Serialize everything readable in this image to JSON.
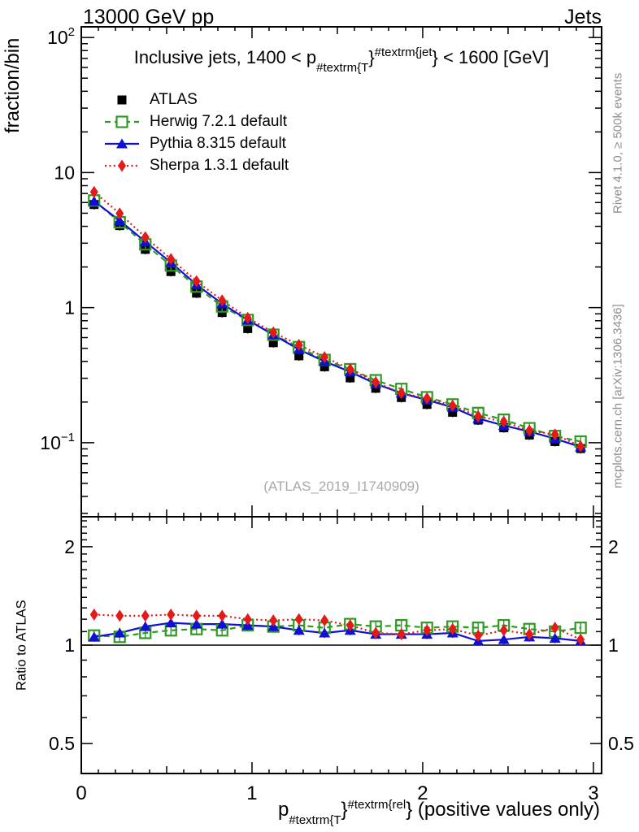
{
  "header": {
    "left_label": "13000 GeV pp",
    "right_label": "Jets"
  },
  "side_notes": {
    "top": "Rivet 4.1.0, ≥ 500k events",
    "bottom": "mcplots.cern.ch [arXiv:1306.3436]"
  },
  "watermark": "(ATLAS_2019_I1740909)",
  "main_title": {
    "pre": "Inclusive jets, 1400 < p",
    "sub": "#textrm{T",
    "brace1": "}",
    "sup": "#textrm{jet",
    "brace2": "}",
    "post": " < 1600 [GeV]"
  },
  "x_title": {
    "pre": "p",
    "sub": "#textrm{T",
    "brace1": "}",
    "sup": "#textrm{rel",
    "brace2": "}",
    "post": " (positive values only)"
  },
  "axis_labels": {
    "main_y": "fraction/bin",
    "ratio_y": "Ratio to ATLAS"
  },
  "chart_data": {
    "type": "line",
    "title": "Inclusive jets, 1400 < pT^jet < 1600 [GeV]",
    "xlabel": "pT^rel (positive values only)",
    "ylabel": "fraction/bin",
    "ratio_ylabel": "Ratio to ATLAS",
    "yscale": "log",
    "xlim": [
      0,
      3.048
    ],
    "main_ylim": [
      0.0283,
      120
    ],
    "ratio_ylim": [
      0.405,
      2.47
    ],
    "xticks": [
      0,
      1,
      2,
      3
    ],
    "x_minor_step": 0.1,
    "main_yticks": [
      {
        "v": 100,
        "base": "10",
        "exp": "2"
      },
      {
        "v": 10,
        "base": "10",
        "exp": ""
      },
      {
        "v": 1,
        "base": "1",
        "exp": ""
      },
      {
        "v": 0.1,
        "base": "10",
        "exp": "−1"
      }
    ],
    "ratio_yticks": [
      {
        "v": 2,
        "label": "2"
      },
      {
        "v": 1,
        "label": "1"
      },
      {
        "v": 0.5,
        "label": "0.5"
      }
    ],
    "ratio_baseline": 1,
    "x": [
      0.075,
      0.225,
      0.375,
      0.525,
      0.675,
      0.825,
      0.975,
      1.125,
      1.275,
      1.425,
      1.575,
      1.725,
      1.875,
      2.025,
      2.175,
      2.325,
      2.475,
      2.625,
      2.775,
      2.925
    ],
    "series": [
      {
        "key": "atlas",
        "name": "ATLAS",
        "color": "#000000",
        "marker": "square-filled",
        "line": "none",
        "values": [
          5.8,
          4.05,
          2.7,
          1.85,
          1.28,
          0.92,
          0.7,
          0.55,
          0.44,
          0.365,
          0.302,
          0.253,
          0.216,
          0.192,
          0.168,
          0.147,
          0.129,
          0.114,
          0.102,
          0.0905
        ]
      },
      {
        "key": "herwig",
        "name": "Herwig 7.2.1 default",
        "color": "#2d9b23",
        "marker": "square-open",
        "line": "dashed",
        "values": [
          6.21,
          4.29,
          2.94,
          2.05,
          1.43,
          1.02,
          0.81,
          0.63,
          0.51,
          0.41,
          0.35,
          0.29,
          0.25,
          0.217,
          0.192,
          0.166,
          0.148,
          0.128,
          0.112,
          0.102
        ],
        "ratio": [
          1.07,
          1.06,
          1.09,
          1.11,
          1.12,
          1.11,
          1.15,
          1.14,
          1.15,
          1.13,
          1.16,
          1.14,
          1.15,
          1.13,
          1.14,
          1.13,
          1.15,
          1.12,
          1.1,
          1.13
        ]
      },
      {
        "key": "pythia",
        "name": "Pythia 8.315 default",
        "color": "#0f0fd6",
        "marker": "triangle-filled",
        "line": "solid",
        "values": [
          6.15,
          4.41,
          3.08,
          2.16,
          1.48,
          1.07,
          0.81,
          0.63,
          0.49,
          0.4,
          0.335,
          0.273,
          0.233,
          0.207,
          0.183,
          0.151,
          0.134,
          0.121,
          0.107,
          0.093
        ],
        "ratio": [
          1.06,
          1.09,
          1.14,
          1.17,
          1.16,
          1.16,
          1.15,
          1.14,
          1.11,
          1.09,
          1.11,
          1.08,
          1.08,
          1.08,
          1.09,
          1.03,
          1.04,
          1.06,
          1.05,
          1.03
        ]
      },
      {
        "key": "sherpa",
        "name": "Sherpa 1.3.1 default",
        "color": "#e61919",
        "marker": "diamond-filled",
        "line": "dotted",
        "values": [
          7.19,
          4.98,
          3.32,
          2.29,
          1.57,
          1.13,
          0.84,
          0.655,
          0.53,
          0.43,
          0.35,
          0.28,
          0.233,
          0.213,
          0.188,
          0.157,
          0.143,
          0.123,
          0.115,
          0.094
        ],
        "ratio": [
          1.24,
          1.23,
          1.23,
          1.24,
          1.23,
          1.23,
          1.2,
          1.19,
          1.2,
          1.19,
          1.15,
          1.09,
          1.08,
          1.11,
          1.12,
          1.07,
          1.11,
          1.08,
          1.13,
          1.04
        ]
      }
    ]
  }
}
